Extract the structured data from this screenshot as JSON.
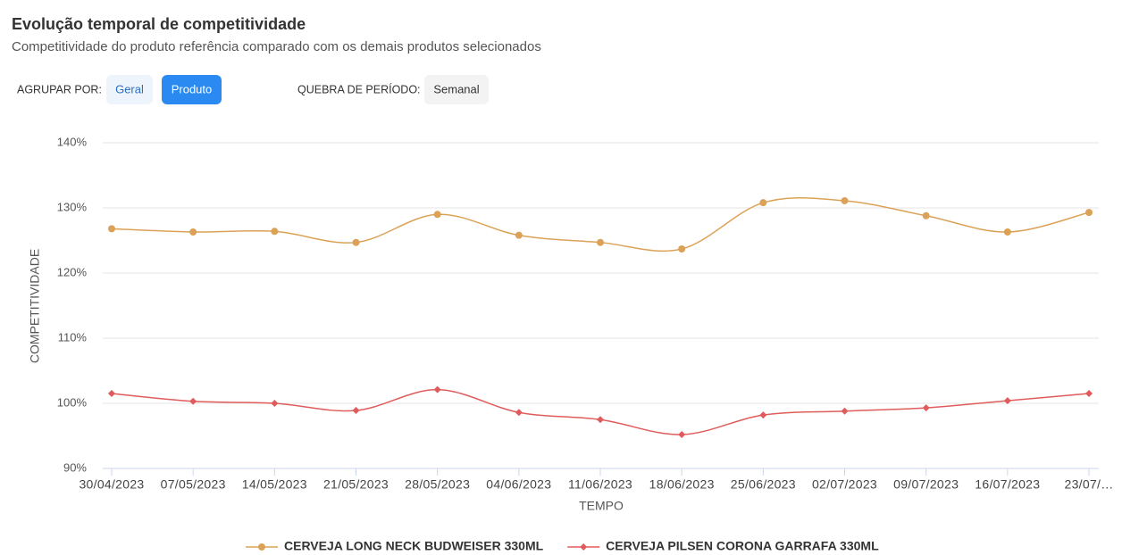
{
  "header": {
    "title": "Evolução temporal de competitividade",
    "subtitle": "Competitividade do produto referência comparado com os demais produtos selecionados"
  },
  "controls": {
    "group_label": "AGRUPAR POR:",
    "group_options": [
      "Geral",
      "Produto"
    ],
    "period_label": "QUEBRA DE PERÍODO:",
    "period_option": "Semanal"
  },
  "chart_data": {
    "type": "line",
    "x_label": "TEMPO",
    "y_label": "COMPETITIVIDADE",
    "categories": [
      "30/04/2023",
      "07/05/2023",
      "14/05/2023",
      "21/05/2023",
      "28/05/2023",
      "04/06/2023",
      "11/06/2023",
      "18/06/2023",
      "25/06/2023",
      "02/07/2023",
      "09/07/2023",
      "16/07/2023",
      "23/07/…"
    ],
    "series": [
      {
        "name": "CERVEJA LONG NECK BUDWEISER 330ML",
        "color": "#dba257",
        "marker": "circle",
        "values": [
          126.8,
          126.3,
          126.4,
          124.7,
          129.0,
          125.8,
          124.7,
          123.7,
          130.8,
          131.1,
          128.8,
          126.3,
          129.3
        ]
      },
      {
        "name": "CERVEJA PILSEN CORONA GARRAFA 330ML",
        "color": "#e05c5c",
        "marker": "diamond",
        "values": [
          101.5,
          100.3,
          100.0,
          98.9,
          102.1,
          98.6,
          97.5,
          95.2,
          98.2,
          98.8,
          99.3,
          100.4,
          101.5
        ]
      }
    ],
    "ylim": [
      90,
      140
    ],
    "yticks": [
      {
        "value": 90,
        "label": "90%"
      },
      {
        "value": 100,
        "label": "100%"
      },
      {
        "value": 110,
        "label": "110%"
      },
      {
        "value": 120,
        "label": "120%"
      },
      {
        "value": 130,
        "label": "130%"
      },
      {
        "value": 140,
        "label": "140%"
      }
    ],
    "grid": true,
    "legend": "bottom"
  }
}
